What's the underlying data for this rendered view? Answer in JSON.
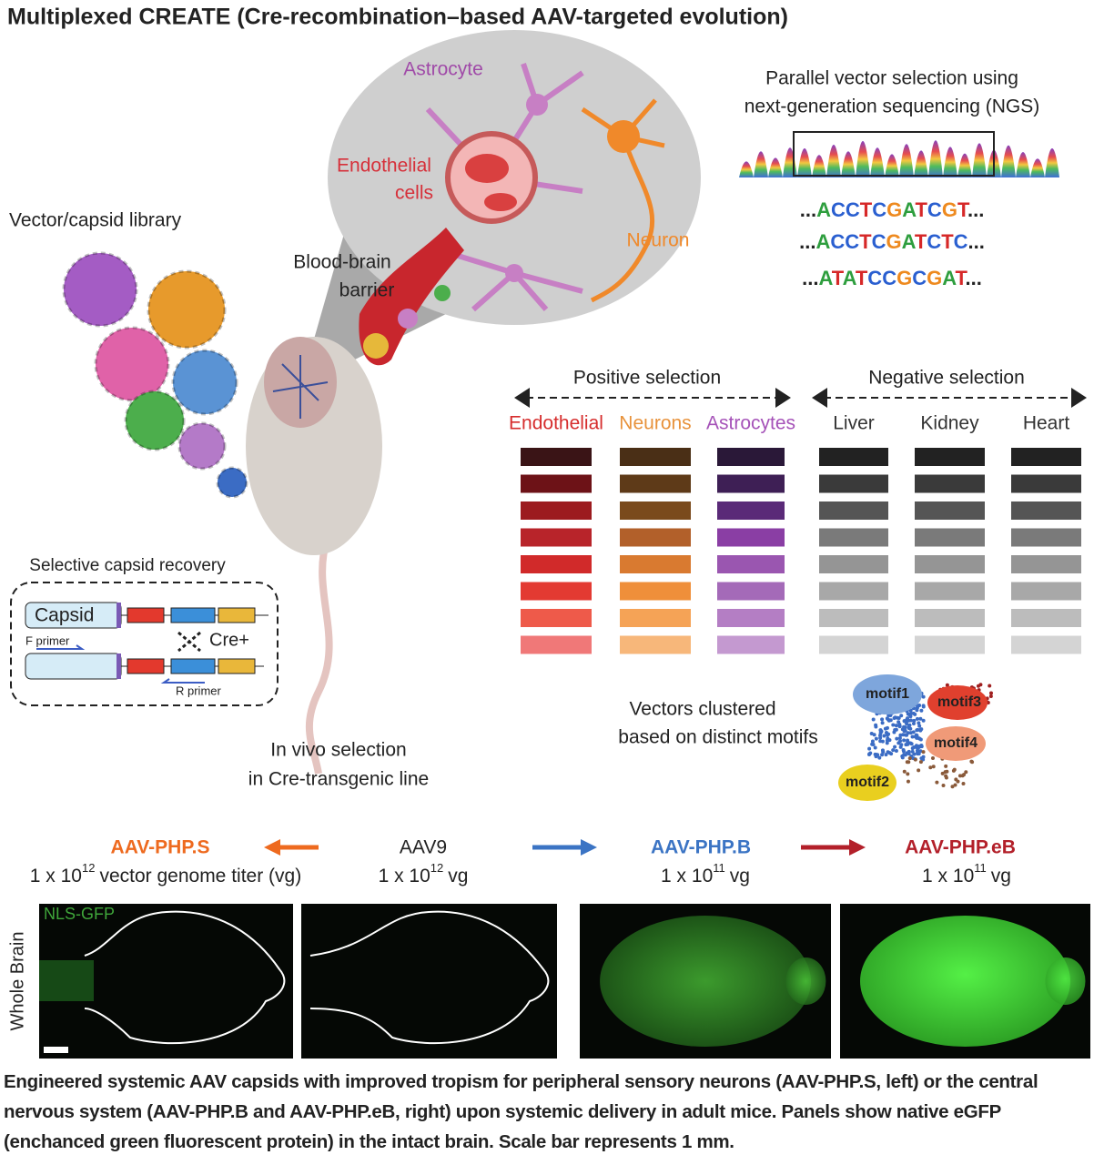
{
  "title": "Multiplexed CREATE (Cre-recombination–based AAV-targeted evolution)",
  "library": {
    "label": "Vector/capsid library"
  },
  "bubble": {
    "astrocyte": "Astrocyte",
    "endothelial": [
      "Endothelial",
      "cells"
    ],
    "neuron": "Neuron",
    "bbb": [
      "Blood-brain",
      "barrier"
    ]
  },
  "ngs": {
    "title": [
      "Parallel vector selection using",
      "next-generation sequencing (NGS)"
    ],
    "sequences": [
      "...ACCTCGATCGT...",
      "...ACCTCGATCTC...",
      "...ATATCCGCGAT..."
    ]
  },
  "selection": {
    "positive": "Positive selection",
    "negative": "Negative selection",
    "columns": [
      {
        "label": "Endothelial",
        "color": "#d62d2d"
      },
      {
        "label": "Neurons",
        "color": "#e8923b"
      },
      {
        "label": "Astrocytes",
        "color": "#a552b8"
      },
      {
        "label": "Liver",
        "color": "#333333"
      },
      {
        "label": "Kidney",
        "color": "#333333"
      },
      {
        "label": "Heart",
        "color": "#333333"
      }
    ]
  },
  "recovery": {
    "title": "Selective capsid recovery",
    "capsid": "Capsid",
    "f_primer": "F primer",
    "cre": "Cre+",
    "r_primer": "R primer"
  },
  "invivo": [
    "In vivo selection",
    "in Cre-transgenic line"
  ],
  "clusters": {
    "label": [
      "Vectors clustered",
      "based on distinct motifs"
    ],
    "motifs": [
      "motif1",
      "motif2",
      "motif3",
      "motif4"
    ]
  },
  "variants": [
    {
      "name": "AAV-PHP.S",
      "color": "#ee6a1f",
      "dose": {
        "base": "1 x 10",
        "exp": "12",
        "unit": "vector genome titer (vg)"
      }
    },
    {
      "name": "AAV9",
      "color": "#222222",
      "dose": {
        "base": "1 x 10",
        "exp": "12",
        "unit": "vg"
      }
    },
    {
      "name": "AAV-PHP.B",
      "color": "#3b74c4",
      "dose": {
        "base": "1 x 10",
        "exp": "11",
        "unit": "vg"
      }
    },
    {
      "name": "AAV-PHP.eB",
      "color": "#b3202a",
      "dose": {
        "base": "1 x 10",
        "exp": "11",
        "unit": "vg"
      }
    }
  ],
  "images": {
    "stain": "NLS-GFP",
    "region": "Whole Brain"
  },
  "caption": "Engineered systemic AAV capsids with improved tropism for peripheral sensory neurons (AAV-PHP.S, left) or the central nervous system (AAV-PHP.B and AAV-PHP.eB, right) upon systemic delivery in adult mice. Panels show native eGFP (enchanced green fluorescent protein) in the intact brain. Scale bar represents 1 mm."
}
